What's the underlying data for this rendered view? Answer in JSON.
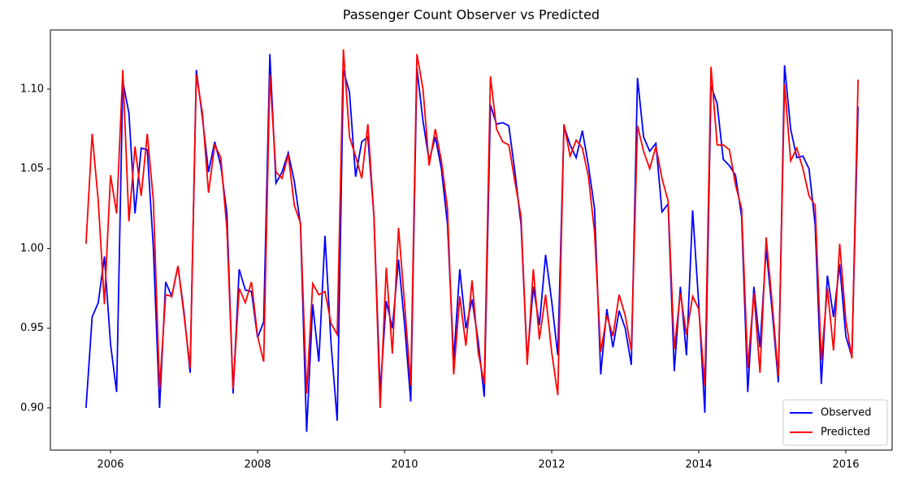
{
  "chart_data": {
    "type": "line",
    "title": "Passenger Count Observer vs Predicted",
    "x": [
      2005.667,
      2005.75,
      2005.833,
      2005.917,
      2006,
      2006.083,
      2006.167,
      2006.25,
      2006.333,
      2006.417,
      2006.5,
      2006.583,
      2006.667,
      2006.75,
      2006.833,
      2006.917,
      2007,
      2007.083,
      2007.167,
      2007.25,
      2007.333,
      2007.417,
      2007.5,
      2007.583,
      2007.667,
      2007.75,
      2007.833,
      2007.917,
      2008,
      2008.083,
      2008.167,
      2008.25,
      2008.333,
      2008.417,
      2008.5,
      2008.583,
      2008.667,
      2008.75,
      2008.833,
      2008.917,
      2009,
      2009.083,
      2009.167,
      2009.25,
      2009.333,
      2009.417,
      2009.5,
      2009.583,
      2009.667,
      2009.75,
      2009.833,
      2009.917,
      2010,
      2010.083,
      2010.167,
      2010.25,
      2010.333,
      2010.417,
      2010.5,
      2010.583,
      2010.667,
      2010.75,
      2010.833,
      2010.917,
      2011,
      2011.083,
      2011.167,
      2011.25,
      2011.333,
      2011.417,
      2011.5,
      2011.583,
      2011.667,
      2011.75,
      2011.833,
      2011.917,
      2012,
      2012.083,
      2012.167,
      2012.25,
      2012.333,
      2012.417,
      2012.5,
      2012.583,
      2012.667,
      2012.75,
      2012.833,
      2012.917,
      2013,
      2013.083,
      2013.167,
      2013.25,
      2013.333,
      2013.417,
      2013.5,
      2013.583,
      2013.667,
      2013.75,
      2013.833,
      2013.917,
      2014,
      2014.083,
      2014.167,
      2014.25,
      2014.333,
      2014.417,
      2014.5,
      2014.583,
      2014.667,
      2014.75,
      2014.833,
      2014.917,
      2015,
      2015.083,
      2015.167,
      2015.25,
      2015.333,
      2015.417,
      2015.5,
      2015.583,
      2015.667,
      2015.75,
      2015.833,
      2015.917,
      2016,
      2016.083,
      2016.167
    ],
    "series": [
      {
        "name": "Observed",
        "color": "#0000ff",
        "values": [
          0.9,
          0.957,
          0.966,
          0.995,
          0.94,
          0.91,
          1.105,
          1.085,
          1.022,
          1.063,
          1.062,
          1.0,
          0.9,
          0.979,
          0.97,
          0.989,
          0.96,
          0.922,
          1.112,
          1.082,
          1.048,
          1.067,
          1.052,
          1.022,
          0.909,
          0.987,
          0.974,
          0.973,
          0.944,
          0.954,
          1.122,
          1.041,
          1.048,
          1.06,
          1.042,
          1.015,
          0.885,
          0.965,
          0.929,
          1.008,
          0.94,
          0.892,
          1.112,
          1.098,
          1.045,
          1.067,
          1.07,
          1.02,
          0.91,
          0.967,
          0.95,
          0.993,
          0.952,
          0.904,
          1.113,
          1.08,
          1.055,
          1.07,
          1.05,
          1.015,
          0.93,
          0.987,
          0.95,
          0.968,
          0.942,
          0.907,
          1.09,
          1.078,
          1.079,
          1.077,
          1.048,
          1.015,
          0.93,
          0.976,
          0.952,
          0.996,
          0.967,
          0.933,
          1.077,
          1.065,
          1.057,
          1.074,
          1.052,
          1.025,
          0.921,
          0.962,
          0.938,
          0.961,
          0.95,
          0.927,
          1.107,
          1.07,
          1.061,
          1.066,
          1.023,
          1.028,
          0.923,
          0.976,
          0.933,
          1.024,
          0.965,
          0.897,
          1.102,
          1.091,
          1.056,
          1.052,
          1.046,
          1.02,
          0.91,
          0.976,
          0.938,
          1.0,
          0.96,
          0.916,
          1.115,
          1.075,
          1.057,
          1.058,
          1.05,
          1.015,
          0.915,
          0.983,
          0.957,
          0.99,
          0.945,
          0.932,
          1.089
        ]
      },
      {
        "name": "Predicted",
        "color": "#ff0000",
        "values": [
          1.003,
          1.072,
          1.03,
          0.965,
          1.046,
          1.022,
          1.112,
          1.017,
          1.064,
          1.033,
          1.072,
          1.03,
          0.912,
          0.971,
          0.97,
          0.989,
          0.958,
          0.925,
          1.109,
          1.085,
          1.035,
          1.065,
          1.057,
          1.012,
          0.912,
          0.975,
          0.966,
          0.979,
          0.945,
          0.929,
          1.109,
          1.048,
          1.044,
          1.059,
          1.027,
          1.016,
          0.909,
          0.978,
          0.971,
          0.973,
          0.953,
          0.946,
          1.125,
          1.07,
          1.058,
          1.044,
          1.078,
          1.02,
          0.9,
          0.988,
          0.934,
          1.013,
          0.965,
          0.914,
          1.122,
          1.1,
          1.052,
          1.075,
          1.055,
          1.025,
          0.921,
          0.97,
          0.939,
          0.98,
          0.935,
          0.915,
          1.108,
          1.075,
          1.067,
          1.065,
          1.042,
          1.02,
          0.927,
          0.987,
          0.943,
          0.971,
          0.935,
          0.908,
          1.078,
          1.058,
          1.068,
          1.063,
          1.045,
          1.01,
          0.935,
          0.958,
          0.945,
          0.971,
          0.958,
          0.936,
          1.077,
          1.061,
          1.05,
          1.064,
          1.044,
          1.03,
          0.937,
          0.972,
          0.946,
          0.97,
          0.962,
          0.914,
          1.114,
          1.065,
          1.065,
          1.062,
          1.04,
          1.025,
          0.925,
          0.972,
          0.922,
          1.007,
          0.965,
          0.92,
          1.103,
          1.055,
          1.063,
          1.05,
          1.033,
          1.027,
          0.93,
          0.975,
          0.936,
          1.003,
          0.955,
          0.931,
          1.106
        ]
      }
    ],
    "xlim": [
      2005.182,
      2016.63
    ],
    "ylim": [
      0.8735,
      1.1371
    ],
    "xticks": [
      2006,
      2008,
      2010,
      2012,
      2014,
      2016
    ],
    "yticks": [
      {
        "value": 0.9,
        "label": "0.90"
      },
      {
        "value": 0.95,
        "label": "0.95"
      },
      {
        "value": 1.0,
        "label": "1.00"
      },
      {
        "value": 1.05,
        "label": "1.05"
      },
      {
        "value": 1.1,
        "label": "1.10"
      }
    ],
    "legend": "lower right"
  }
}
